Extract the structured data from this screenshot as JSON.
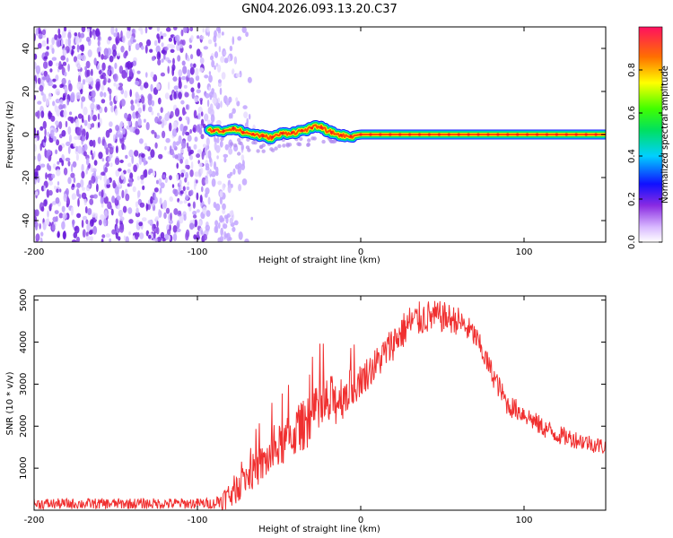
{
  "figure": {
    "title": "GN04.2026.093.13.20.C37"
  },
  "chart_data": [
    {
      "type": "heatmap",
      "name": "spectrogram",
      "xlabel": "Height of straight line (km)",
      "ylabel": "Frequency (Hz)",
      "xlim": [
        -200,
        150
      ],
      "ylim": [
        -50,
        50
      ],
      "xticks": [
        -200,
        -100,
        0,
        100
      ],
      "xtick_labels": [
        "-200",
        "-100",
        "0",
        "100"
      ],
      "yticks": [
        -40,
        -20,
        0,
        20,
        40
      ],
      "ytick_labels": [
        "-40",
        "-20",
        "0",
        "20",
        "40"
      ],
      "noise_region_x": [
        -200,
        -65
      ],
      "signal_line": {
        "x_start": -93,
        "x_end": 150,
        "center_freq_hz": [
          [
            -93,
            2
          ],
          [
            -85,
            1.5
          ],
          [
            -78,
            3
          ],
          [
            -72,
            1
          ],
          [
            -65,
            0
          ],
          [
            -55,
            -1.5
          ],
          [
            -48,
            0.5
          ],
          [
            -40,
            1
          ],
          [
            -32,
            2.5
          ],
          [
            -26,
            4
          ],
          [
            -20,
            1.5
          ],
          [
            -14,
            0
          ],
          [
            -8,
            -1
          ],
          [
            0,
            0
          ],
          [
            50,
            0
          ],
          [
            100,
            0
          ],
          [
            150,
            0
          ]
        ]
      },
      "colorbar": {
        "label": "Normalized spectral amplitude",
        "range": [
          0,
          1
        ],
        "ticks": [
          0.0,
          0.2,
          0.4,
          0.6,
          0.8
        ],
        "tick_labels": [
          "0.0",
          "0.2",
          "0.4",
          "0.6",
          "0.8"
        ]
      }
    },
    {
      "type": "line",
      "name": "snr",
      "xlabel": "Height of straight line (km)",
      "ylabel": "SNR (10 * v/v)",
      "xlim": [
        -200,
        150
      ],
      "ylim": [
        0,
        5100
      ],
      "xticks": [
        -200,
        -100,
        0,
        100
      ],
      "xtick_labels": [
        "-200",
        "-100",
        "0",
        "100"
      ],
      "yticks": [
        1000,
        2000,
        3000,
        4000,
        5000
      ],
      "ytick_labels": [
        "1000",
        "2000",
        "3000",
        "4000",
        "5000"
      ],
      "series": [
        {
          "name": "SNR",
          "color": "#f03030",
          "envelope_x": [
            -200,
            -90,
            -80,
            -70,
            -60,
            -50,
            -40,
            -30,
            -20,
            -10,
            0,
            10,
            20,
            30,
            40,
            50,
            60,
            70,
            80,
            90,
            100,
            110,
            120,
            130,
            140,
            150
          ],
          "envelope_y": [
            150,
            160,
            350,
            800,
            1100,
            1500,
            1850,
            2200,
            2500,
            2750,
            3100,
            3500,
            4000,
            4450,
            4600,
            4600,
            4500,
            4150,
            3300,
            2500,
            2300,
            2000,
            1800,
            1700,
            1600,
            1500
          ],
          "noise_amplitude": [
            [
              -200,
              130
            ],
            [
              -90,
              130
            ],
            [
              -80,
              350
            ],
            [
              -20,
              700
            ],
            [
              0,
              400
            ],
            [
              30,
              450
            ],
            [
              70,
              300
            ],
            [
              100,
              250
            ],
            [
              150,
              200
            ]
          ]
        }
      ]
    }
  ]
}
